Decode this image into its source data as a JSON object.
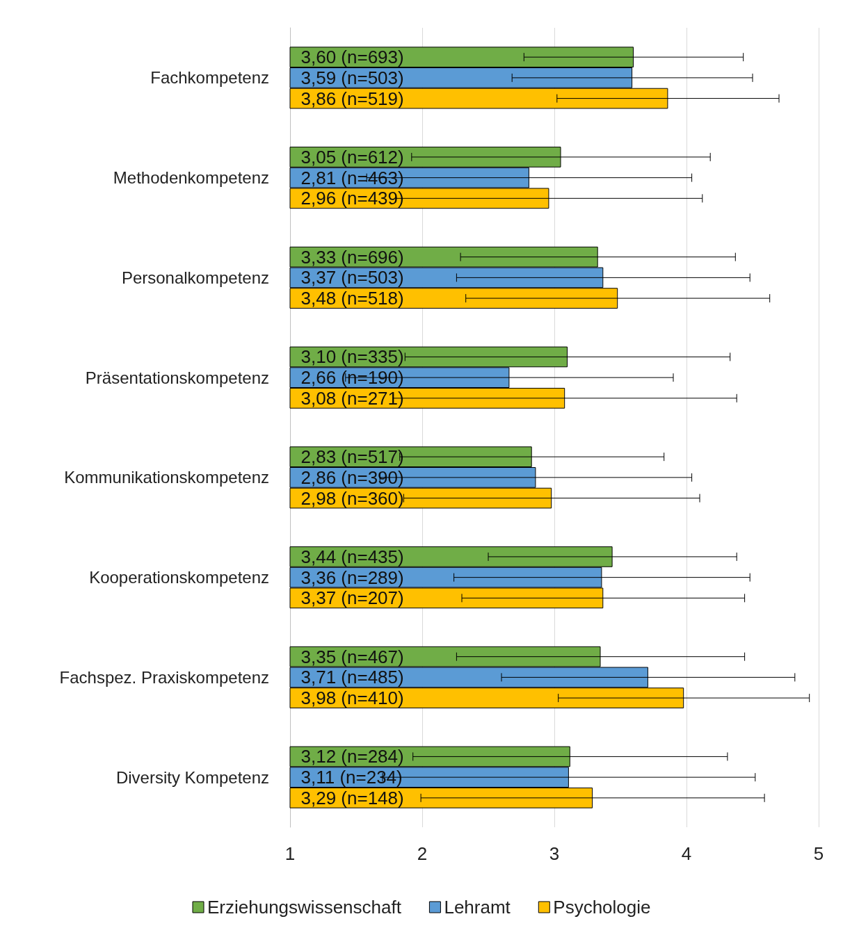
{
  "chart_data": {
    "type": "bar",
    "orientation": "horizontal",
    "categories": [
      "Fachkompetenz",
      "Methodenkompetenz",
      "Personalkompetenz",
      "Präsentationskompetenz",
      "Kommunikationskompetenz",
      "Kooperationskompetenz",
      "Fachspez. Praxiskompetenz",
      "Diversity Kompetenz"
    ],
    "series": [
      {
        "name": "Erziehungswissenschaft",
        "color": "#70ad47",
        "values": [
          3.6,
          3.05,
          3.33,
          3.1,
          2.83,
          3.44,
          3.35,
          3.12
        ],
        "errors": [
          0.83,
          1.13,
          1.04,
          1.23,
          1.0,
          0.94,
          1.09,
          1.19
        ],
        "value_labels": [
          "3,60 (n=693)",
          "3,05 (n=612)",
          "3,33 (n=696)",
          "3,10 (n=335)",
          "2,83 (n=517)",
          "3,44 (n=435)",
          "3,35 (n=467)",
          "3,12 (n=284)"
        ]
      },
      {
        "name": "Lehramt",
        "color": "#5b9bd5",
        "values": [
          3.59,
          2.81,
          3.37,
          2.66,
          2.86,
          3.36,
          3.71,
          3.11
        ],
        "errors": [
          0.91,
          1.23,
          1.11,
          1.24,
          1.18,
          1.12,
          1.11,
          1.41
        ],
        "value_labels": [
          "3,59 (n=503)",
          "2,81 (n=463)",
          "3,37 (n=503)",
          "2,66 (n=190)",
          "2,86 (n=390)",
          "3,36 (n=289)",
          "3,71 (n=485)",
          "3,11 (n=234)"
        ]
      },
      {
        "name": "Psychologie",
        "color": "#ffc000",
        "values": [
          3.86,
          2.96,
          3.48,
          3.08,
          2.98,
          3.37,
          3.98,
          3.29
        ],
        "errors": [
          0.84,
          1.16,
          1.15,
          1.3,
          1.12,
          1.07,
          0.95,
          1.3
        ],
        "value_labels": [
          "3,86 (n=519)",
          "2,96 (n=439)",
          "3,48 (n=518)",
          "3,08 (n=271)",
          "2,98 (n=360)",
          "3,37 (n=207)",
          "3,98 (n=410)",
          "3,29 (n=148)"
        ]
      }
    ],
    "xlim": [
      1,
      5
    ],
    "xticks": [
      1,
      2,
      3,
      4,
      5
    ],
    "grid": "x",
    "legend": "bottom"
  }
}
